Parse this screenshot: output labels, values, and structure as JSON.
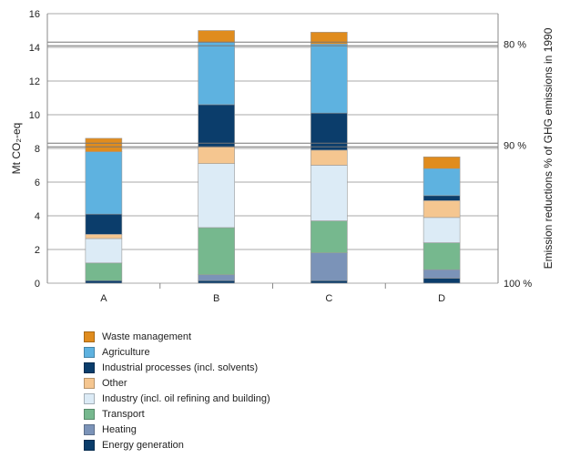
{
  "chart_data": {
    "type": "bar",
    "stacked": true,
    "categories": [
      "A",
      "B",
      "C",
      "D"
    ],
    "ylabel": "Mt CO₂-eq",
    "y2label": "Emission reductions % of GHG emissions in 1990",
    "ylim": [
      0,
      16
    ],
    "yticks": [
      0,
      2,
      4,
      6,
      8,
      10,
      12,
      14,
      16
    ],
    "grid": true,
    "legend_position": "bottom-left",
    "reference_lines": [
      {
        "y": 14.2,
        "label": "80 %"
      },
      {
        "y": 8.2,
        "label": "90 %"
      },
      {
        "y": 0,
        "label": "100 %"
      }
    ],
    "series": [
      {
        "name": "Energy generation",
        "color": "#0b3d6b",
        "values": [
          0.15,
          0.15,
          0.15,
          0.3
        ]
      },
      {
        "name": "Heating",
        "color": "#7b93b8",
        "values": [
          0.0,
          0.35,
          1.65,
          0.5
        ]
      },
      {
        "name": "Transport",
        "color": "#76b88e",
        "values": [
          1.05,
          2.8,
          1.9,
          1.6
        ]
      },
      {
        "name": "Industry (incl. oil refining and building)",
        "color": "#dcebf6",
        "values": [
          1.45,
          3.8,
          3.3,
          1.5
        ]
      },
      {
        "name": "Other",
        "color": "#f5c690",
        "values": [
          0.25,
          1.0,
          0.9,
          1.0
        ]
      },
      {
        "name": "Industrial processes (incl. solvents)",
        "color": "#0b3d6b",
        "values": [
          1.2,
          2.5,
          2.2,
          0.3
        ]
      },
      {
        "name": "Agriculture",
        "color": "#5eb2e0",
        "values": [
          3.7,
          3.7,
          4.1,
          1.6
        ]
      },
      {
        "name": "Waste management",
        "color": "#e08c1e",
        "values": [
          0.8,
          0.7,
          0.7,
          0.7
        ]
      }
    ]
  }
}
